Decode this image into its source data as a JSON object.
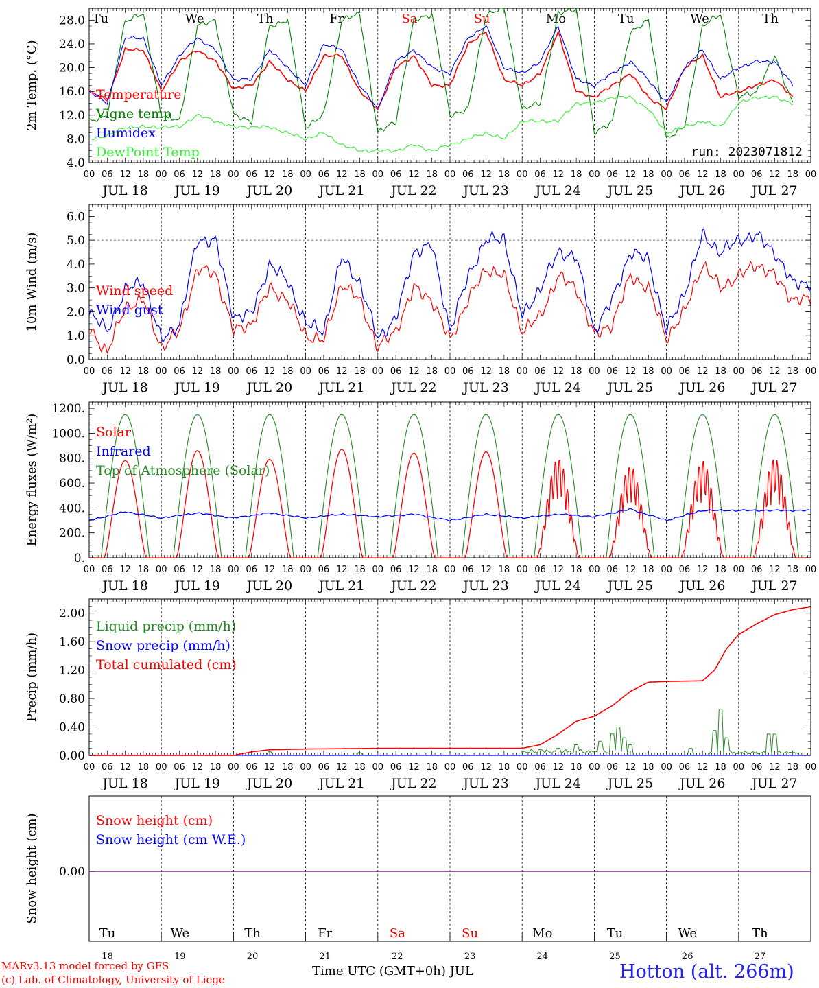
{
  "colors": {
    "temp": "#ff0000",
    "vigne": "#008000",
    "humidex": "#0000ff",
    "dew": "#33ee33",
    "solar": "#ff0000",
    "infrared": "#0000ff",
    "toa": "#228b22",
    "liquid": "#228b22",
    "snow": "#0000ff",
    "cum": "#ff0000",
    "snowh": "#ff0000",
    "snowwe": "#0000ff",
    "zero": "#7a2a8a",
    "sat": "#ff0000",
    "sun": "#ff0000",
    "weekday": "#000000"
  },
  "days": {
    "labels": [
      "JUL 18",
      "JUL 19",
      "JUL 20",
      "JUL 21",
      "JUL 22",
      "JUL 23",
      "JUL 24",
      "JUL 25",
      "JUL 26",
      "JUL 27"
    ],
    "weekdays": [
      "Tu",
      "We",
      "Th",
      "Fr",
      "Sa",
      "Su",
      "Mo",
      "Tu",
      "We",
      "Th"
    ],
    "numbers": [
      "18",
      "19",
      "20",
      "21",
      "22",
      "23",
      "24",
      "25",
      "26",
      "27"
    ],
    "hour_ticks": [
      "00",
      "06",
      "12",
      "18"
    ],
    "final_tick": "00"
  },
  "chart_data": [
    {
      "type": "line",
      "ylabel": "2m Temp. (°C)",
      "ylim": [
        4,
        30
      ],
      "yticks": [
        "4.0",
        "8.0",
        "12.0",
        "16.0",
        "20.0",
        "24.0",
        "28.0"
      ],
      "run": "run: 2023071812",
      "legend": [
        "Temperature",
        "Vigne temp",
        "Humidex",
        "DewPoint Temp"
      ],
      "x_hours": [
        0,
        6,
        12,
        18,
        24,
        30,
        36,
        42,
        48,
        54,
        60,
        66,
        72,
        78,
        84,
        90,
        96,
        102,
        108,
        114,
        120,
        126,
        132,
        138,
        144,
        150,
        156,
        162,
        168,
        174,
        180,
        186,
        192,
        198,
        204,
        210,
        216,
        222,
        228,
        234
      ],
      "series": [
        {
          "name": "Temperature",
          "values": [
            16,
            14.5,
            23,
            23,
            16,
            21,
            23,
            21,
            16.5,
            17,
            21,
            18,
            16,
            22,
            22,
            16,
            13,
            20,
            22,
            17,
            17,
            24,
            26,
            18,
            17,
            19,
            26,
            16,
            15,
            17,
            19,
            15,
            13,
            20,
            22,
            15,
            16,
            17,
            18,
            15
          ]
        },
        {
          "name": "Vigne temp",
          "values": [
            11,
            12,
            28,
            29,
            12,
            11,
            27,
            28,
            12,
            11,
            27,
            28,
            10,
            12,
            28,
            29,
            9,
            11,
            28,
            29,
            12,
            13,
            29,
            30,
            13,
            14,
            29,
            30,
            9,
            11,
            26,
            28,
            8,
            10,
            27,
            29,
            15,
            16,
            22,
            14
          ]
        },
        {
          "name": "Humidex",
          "values": [
            16,
            14,
            25,
            25,
            17,
            22,
            25,
            23,
            18,
            18,
            23,
            20,
            17,
            24,
            23,
            17,
            13,
            21,
            23,
            20,
            19,
            25,
            27,
            20,
            19,
            21,
            27,
            18,
            17,
            19,
            21,
            18,
            14,
            20,
            23,
            18,
            20,
            21,
            21,
            17
          ]
        },
        {
          "name": "DewPoint Temp",
          "values": [
            8,
            8.5,
            10,
            10,
            10,
            10,
            12,
            11,
            10,
            10,
            10,
            9,
            8,
            9,
            7,
            6,
            6,
            6,
            7,
            6,
            7,
            8,
            9,
            8,
            11,
            11,
            11,
            14,
            14,
            15,
            15,
            13,
            9,
            10,
            11,
            10,
            14,
            15,
            15,
            14
          ]
        }
      ]
    },
    {
      "type": "line",
      "ylabel": "10m Wind (m/s)",
      "ylim": [
        0,
        6.5
      ],
      "yticks": [
        "0.0",
        "1.0",
        "2.0",
        "3.0",
        "4.0",
        "5.0",
        "6.0"
      ],
      "legend": [
        "Wind speed",
        "Wind gust"
      ],
      "x_hours": [
        0,
        6,
        12,
        18,
        24,
        30,
        36,
        42,
        48,
        54,
        60,
        66,
        72,
        78,
        84,
        90,
        96,
        102,
        108,
        114,
        120,
        126,
        132,
        138,
        144,
        150,
        156,
        162,
        168,
        174,
        180,
        186,
        192,
        198,
        204,
        210,
        216,
        222,
        228,
        234
      ],
      "series": [
        {
          "name": "Wind speed",
          "values": [
            1.3,
            0.3,
            2.2,
            2.5,
            0.5,
            1.2,
            3.8,
            3.6,
            1.2,
            1.5,
            3,
            2.5,
            1,
            0.8,
            3.2,
            2.5,
            0.5,
            1.2,
            3,
            2.5,
            0.8,
            2.5,
            3.8,
            3.5,
            1.2,
            1.8,
            3.5,
            3,
            1,
            1.5,
            3.5,
            3,
            0.9,
            2,
            4,
            3,
            3.5,
            4,
            3.5,
            2.5
          ]
        },
        {
          "name": "Wind gust",
          "values": [
            2,
            1.2,
            2.9,
            3.3,
            0.8,
            1.5,
            5,
            5,
            1.8,
            1.9,
            4,
            3.3,
            1.5,
            1.2,
            4.3,
            3.2,
            0.9,
            1.7,
            4.5,
            4.8,
            1.2,
            3.5,
            5,
            5.1,
            1.8,
            3,
            4.5,
            4.3,
            1.2,
            2.5,
            4.5,
            4.2,
            1.2,
            2.8,
            5.2,
            4.5,
            5,
            5.2,
            4.5,
            3.2
          ]
        }
      ]
    },
    {
      "type": "line",
      "ylabel": "Energy fluxes (W/m²)",
      "ylim": [
        0,
        1250
      ],
      "yticks": [
        "0.",
        "200.",
        "400.",
        "600.",
        "800.",
        "1000.",
        "1200."
      ],
      "legend": [
        "Solar",
        "Infrared",
        "Top of Atmosphere (Solar)"
      ],
      "solar_peak": [
        780,
        860,
        790,
        870,
        840,
        850,
        800,
        740,
        780,
        800
      ],
      "toa_peak": 1150,
      "x_hours": [
        0,
        12,
        24,
        36,
        48,
        60,
        72,
        84,
        96,
        108,
        120,
        132,
        144,
        156,
        168,
        180,
        192,
        204,
        216,
        228
      ],
      "series": [
        {
          "name": "Infrared",
          "values": [
            300,
            370,
            320,
            360,
            320,
            360,
            320,
            350,
            330,
            350,
            300,
            350,
            320,
            350,
            330,
            390,
            300,
            380,
            380,
            380
          ]
        }
      ]
    },
    {
      "type": "line",
      "ylabel": "Precip (mm/h)",
      "ylim": [
        0,
        2.2
      ],
      "yticks": [
        "0.00",
        "0.40",
        "0.80",
        "1.20",
        "1.60",
        "2.00"
      ],
      "legend": [
        "Liquid precip (mm/h)",
        "Snow precip (mm/h)",
        "Total cumulated (cm)"
      ],
      "x_hours": [
        0,
        24,
        48,
        54,
        60,
        72,
        96,
        120,
        144,
        150,
        156,
        162,
        168,
        174,
        180,
        186,
        192,
        204,
        208,
        212,
        216,
        222,
        228,
        234,
        240
      ],
      "series": [
        {
          "name": "Total cumulated (cm)",
          "values": [
            0,
            0,
            0,
            0.05,
            0.08,
            0.09,
            0.1,
            0.1,
            0.1,
            0.15,
            0.3,
            0.48,
            0.55,
            0.7,
            0.9,
            1.03,
            1.04,
            1.05,
            1.2,
            1.5,
            1.7,
            1.85,
            1.98,
            2.05,
            2.09
          ]
        }
      ],
      "spikes_hours": [
        60,
        90,
        150,
        156,
        162,
        170,
        174,
        176,
        178,
        180,
        200,
        208,
        210,
        212,
        226,
        228
      ],
      "spikes_values": [
        0.05,
        0.04,
        0.08,
        0.1,
        0.15,
        0.2,
        0.3,
        0.4,
        0.25,
        0.15,
        0.1,
        0.35,
        0.65,
        0.25,
        0.3,
        0.3
      ]
    },
    {
      "type": "line",
      "ylabel": "Snow height (cm)",
      "yticks": [
        "0.00"
      ],
      "legend": [
        "Snow height (cm)",
        "Snow height (cm W.E.)"
      ],
      "series": [
        {
          "name": "Snow height (cm)",
          "values": [
            0,
            0
          ]
        }
      ]
    }
  ],
  "footer": {
    "xlabel": "Time UTC (GMT+0h) JUL",
    "credit1": "MARv3.13 model forced by GFS",
    "credit2": "(c) Lab. of Climatology, University of Liege",
    "station": "Hotton (alt. 266m)"
  }
}
